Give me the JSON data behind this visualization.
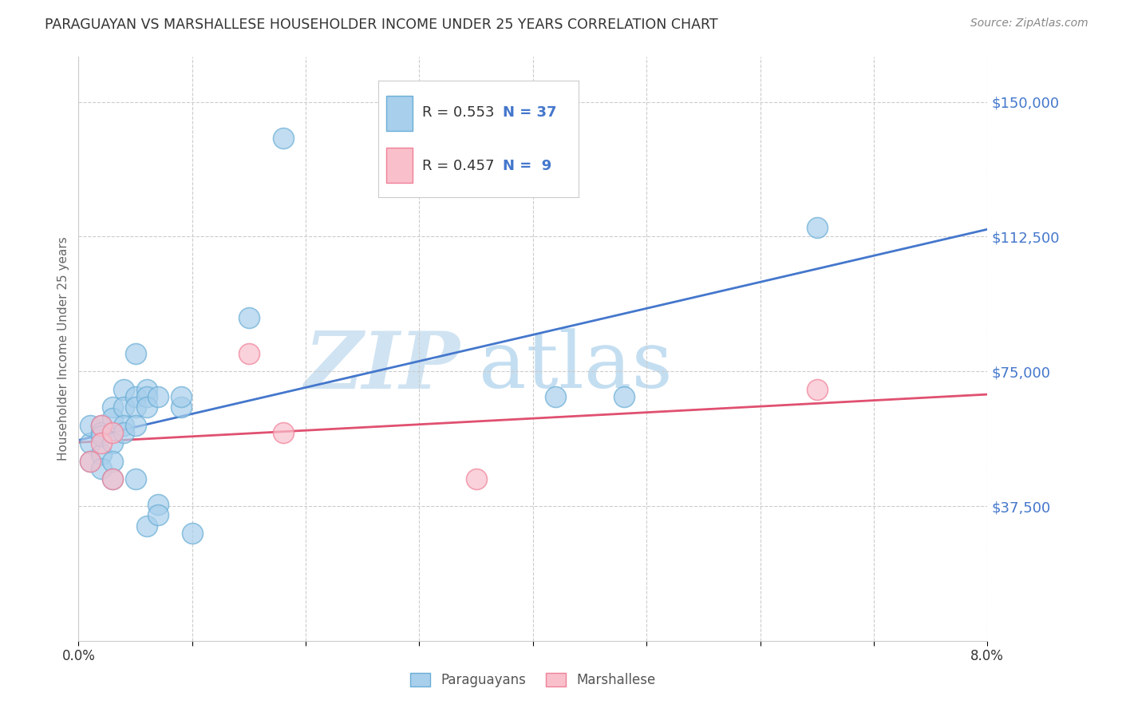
{
  "title": "PARAGUAYAN VS MARSHALLESE HOUSEHOLDER INCOME UNDER 25 YEARS CORRELATION CHART",
  "source": "Source: ZipAtlas.com",
  "ylabel": "Householder Income Under 25 years",
  "xlim": [
    0.0,
    0.08
  ],
  "ylim": [
    0,
    162500
  ],
  "yticks": [
    37500,
    75000,
    112500,
    150000
  ],
  "ytick_labels": [
    "$37,500",
    "$75,000",
    "$112,500",
    "$150,000"
  ],
  "xticks": [
    0.0,
    0.01,
    0.02,
    0.03,
    0.04,
    0.05,
    0.06,
    0.07,
    0.08
  ],
  "xtick_labels": [
    "0.0%",
    "",
    "",
    "",
    "",
    "",
    "",
    "",
    "8.0%"
  ],
  "paraguayan_x": [
    0.001,
    0.001,
    0.001,
    0.002,
    0.002,
    0.002,
    0.002,
    0.002,
    0.003,
    0.003,
    0.003,
    0.003,
    0.003,
    0.004,
    0.004,
    0.004,
    0.004,
    0.005,
    0.005,
    0.005,
    0.005,
    0.005,
    0.006,
    0.006,
    0.006,
    0.006,
    0.007,
    0.007,
    0.007,
    0.009,
    0.009,
    0.01,
    0.015,
    0.018,
    0.042,
    0.048,
    0.065
  ],
  "paraguayan_y": [
    55000,
    60000,
    50000,
    60000,
    58000,
    52000,
    57000,
    48000,
    65000,
    62000,
    55000,
    50000,
    45000,
    70000,
    65000,
    60000,
    58000,
    80000,
    68000,
    65000,
    60000,
    45000,
    70000,
    68000,
    65000,
    32000,
    38000,
    35000,
    68000,
    65000,
    68000,
    30000,
    90000,
    140000,
    68000,
    68000,
    115000
  ],
  "marshallese_x": [
    0.001,
    0.002,
    0.002,
    0.003,
    0.003,
    0.015,
    0.018,
    0.035,
    0.065
  ],
  "marshallese_y": [
    50000,
    60000,
    55000,
    58000,
    45000,
    80000,
    58000,
    45000,
    70000
  ],
  "blue_scatter_color": "#a8cfec",
  "blue_scatter_edge": "#6aaed6",
  "pink_scatter_color": "#f9c0cc",
  "pink_scatter_edge": "#f08098",
  "blue_line_color": "#4477cc",
  "pink_line_color": "#e05070",
  "R_blue": "0.553",
  "N_blue": "37",
  "R_pink": "0.457",
  "N_pink": "9",
  "legend_label_blue": "Paraguayans",
  "legend_label_pink": "Marshallese",
  "watermark_zip": "ZIP",
  "watermark_atlas": "atlas",
  "background_color": "#ffffff",
  "grid_color": "#cccccc",
  "ytick_color": "#4477cc",
  "title_color": "#333333",
  "source_color": "#888888",
  "ylabel_color": "#666666"
}
